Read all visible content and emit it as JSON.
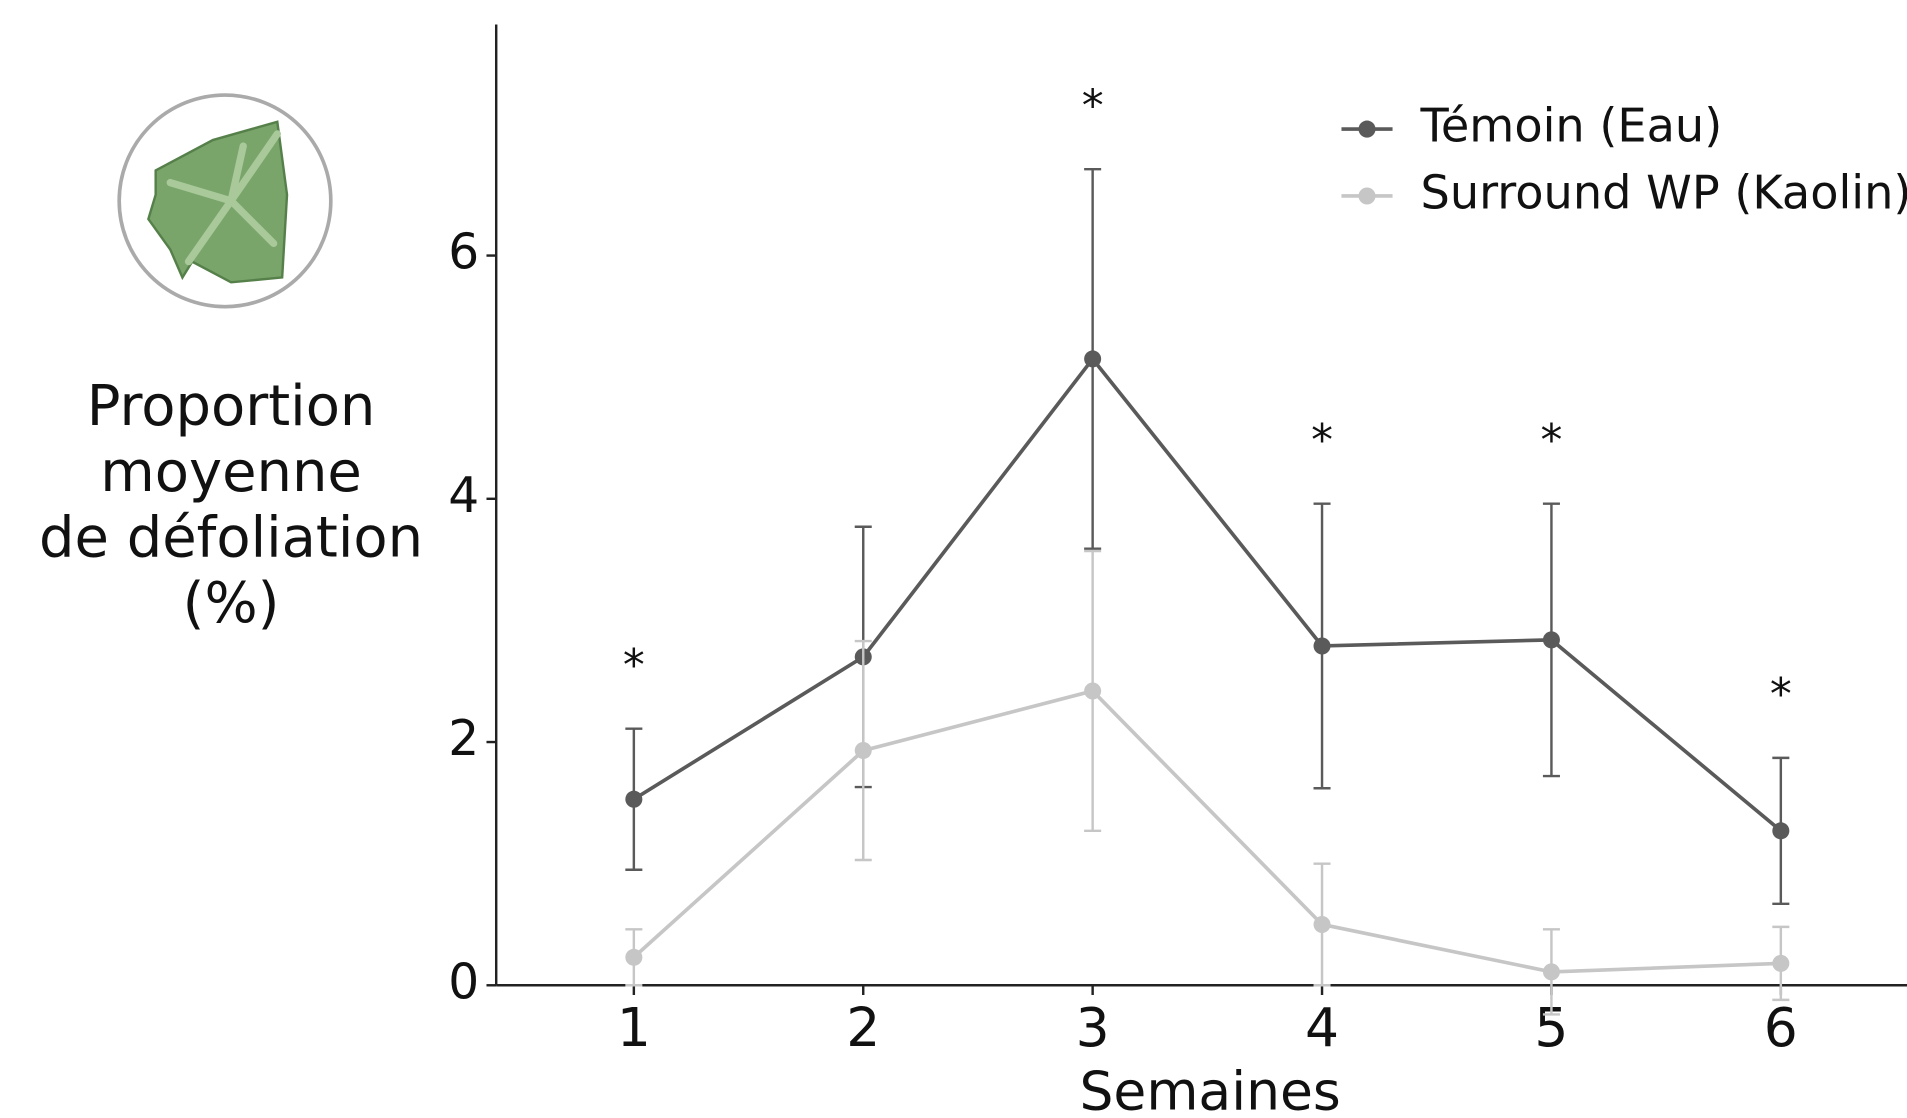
{
  "chart_data": {
    "type": "line",
    "ylabel": [
      "Proportion",
      "moyenne",
      "de défoliation",
      "(%)"
    ],
    "xlabel": "Semaines",
    "x": [
      1,
      2,
      3,
      4,
      5,
      6
    ],
    "series": [
      {
        "name": "Témoin (Eau)",
        "color": "#5a5a5a",
        "values": [
          1.53,
          2.7,
          5.15,
          2.79,
          2.84,
          1.27
        ],
        "errors": [
          0.58,
          1.07,
          1.56,
          1.17,
          1.12,
          0.6
        ]
      },
      {
        "name": "Surround WP (Kaolin)",
        "color": "#c6c6c6",
        "values": [
          0.23,
          1.93,
          2.42,
          0.5,
          0.11,
          0.18
        ],
        "errors": [
          0.23,
          0.9,
          1.15,
          0.5,
          0.35,
          0.3
        ]
      }
    ],
    "annotations": [
      {
        "x": 1,
        "text": "*"
      },
      {
        "x": 3,
        "text": "*"
      },
      {
        "x": 4,
        "text": "*"
      },
      {
        "x": 5,
        "text": "*"
      },
      {
        "x": 6,
        "text": "*"
      }
    ],
    "xlim": [
      0.4,
      6.55
    ],
    "xticks": [
      1,
      2,
      3,
      4,
      5,
      6
    ],
    "ylim": [
      0,
      7.9
    ],
    "yticks": [
      0,
      2,
      4,
      6
    ],
    "legend": "upper right",
    "grid": false
  }
}
